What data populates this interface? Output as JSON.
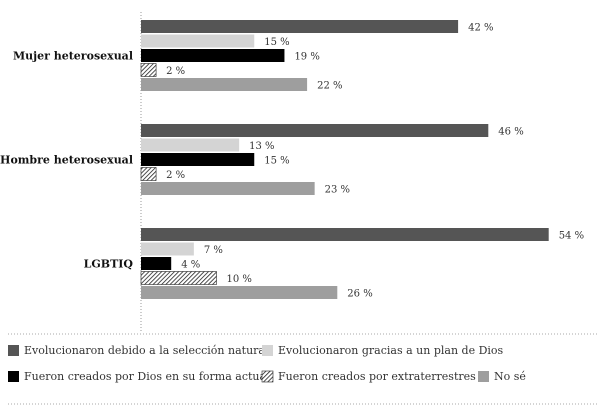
{
  "chart_data": {
    "type": "bar",
    "orientation": "horizontal",
    "title": "",
    "xlabel": "",
    "ylabel": "",
    "xlim": [
      0,
      60
    ],
    "grid": false,
    "legend_position": "bottom",
    "unit": " %",
    "categories": [
      "Mujer heterosexual",
      "Hombre heterosexual",
      "LGBTIQ"
    ],
    "series": [
      {
        "name": "Evolucionaron debido a la selección natural",
        "color": "#555555",
        "pattern": "solid",
        "values": [
          42,
          46,
          54
        ]
      },
      {
        "name": "Evolucionaron gracias a un plan de Dios",
        "color": "#d4d4d4",
        "pattern": "solid",
        "values": [
          15,
          13,
          7
        ]
      },
      {
        "name": "Fueron creados por Dios en su forma actual",
        "color": "#000000",
        "pattern": "solid",
        "values": [
          19,
          15,
          4
        ]
      },
      {
        "name": "Fueron creados por extraterrestres",
        "color": "#333333",
        "pattern": "hatch",
        "values": [
          2,
          2,
          10
        ]
      },
      {
        "name": "No sé",
        "color": "#9e9e9e",
        "pattern": "solid",
        "values": [
          22,
          23,
          26
        ]
      }
    ]
  }
}
